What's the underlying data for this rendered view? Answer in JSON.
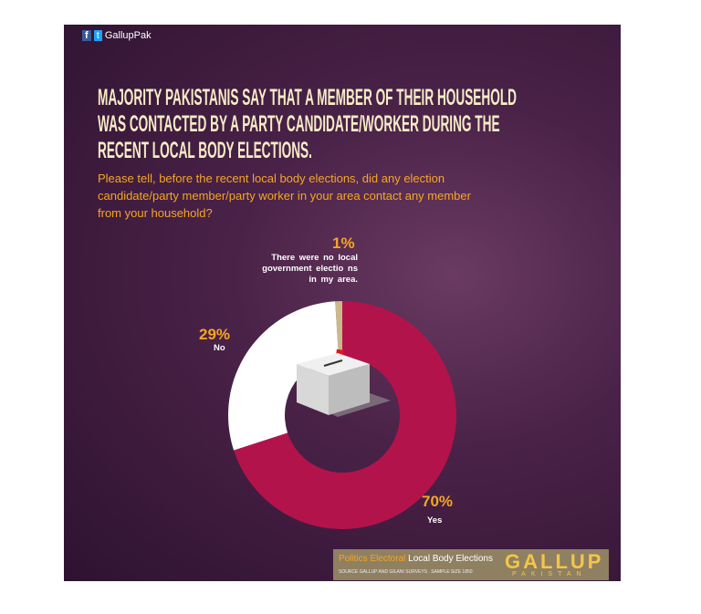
{
  "brand": "GallupPak",
  "chart_data": {
    "type": "donut",
    "title": "MAJORITY PAKISTANIS SAY THAT A MEMBER OF THEIR HOUSEHOLD WAS CONTACTED BY A PARTY CANDIDATE/WORKER DURING THE RECENT LOCAL BODY ELECTIONS.",
    "subtitle": "Please tell, before the recent local body elections, did any election candidate/party member/party worker in your area contact any member from your household?",
    "categories": [
      "Yes",
      "No",
      "There were no local government electio ns in my area."
    ],
    "values": [
      70,
      29,
      1
    ],
    "value_labels": [
      "70%",
      "29%",
      "1%"
    ],
    "colors": [
      "#b3134b",
      "#ffffff",
      "#c9b98b"
    ]
  },
  "footer": {
    "topic": "Politics Electoral",
    "subject": "Local Body Elections",
    "source": "SOURCE GALLUP AND GILANI SURVEYS . SAMPLE SIZE 1850",
    "logo": "GALLUP",
    "logo_sub": "PAKISTAN"
  }
}
